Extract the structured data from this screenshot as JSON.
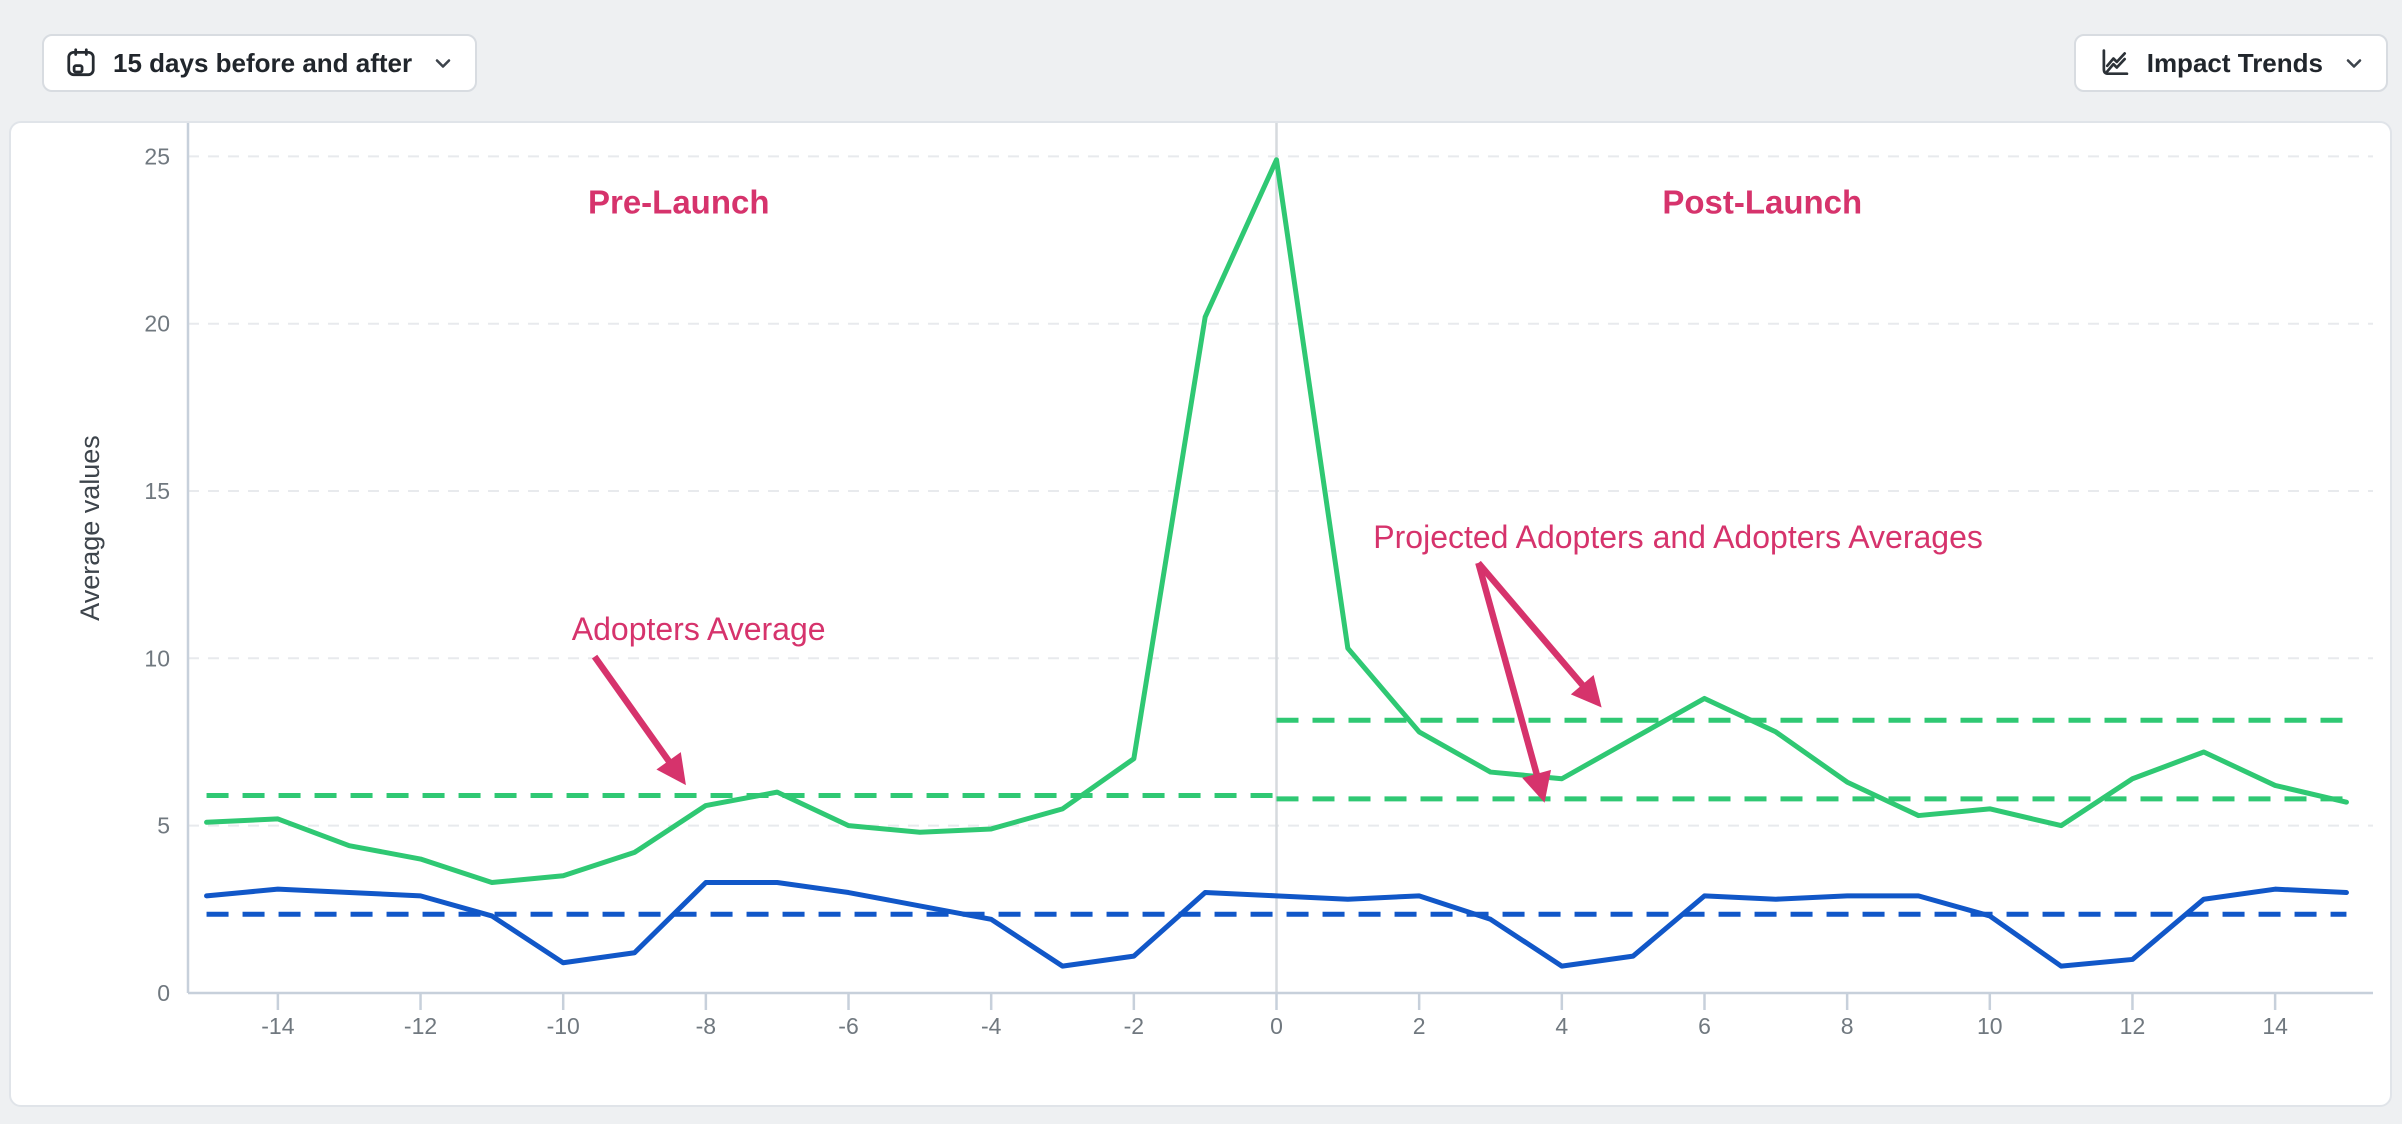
{
  "header": {
    "range_selector": {
      "label": "15 days before and after",
      "icon": "calendar"
    },
    "trends_selector": {
      "label": "Impact Trends",
      "icon": "line-chart"
    }
  },
  "chart_data": {
    "type": "line",
    "title": "",
    "xlabel": "",
    "ylabel": "Average values",
    "yticks": [
      0,
      5,
      10,
      15,
      20,
      25
    ],
    "xticks": [
      -14,
      -12,
      -10,
      -8,
      -6,
      -4,
      -2,
      0,
      2,
      4,
      6,
      8,
      10,
      12,
      14
    ],
    "ylim": [
      0,
      26
    ],
    "xlim": [
      -15.3,
      15.4
    ],
    "grid": "horizontal-dashed",
    "legend": "none",
    "x": [
      -15,
      -14,
      -13,
      -12,
      -11,
      -10,
      -9,
      -8,
      -7,
      -6,
      -5,
      -4,
      -3,
      -2,
      -1,
      0,
      1,
      2,
      3,
      4,
      5,
      6,
      7,
      8,
      9,
      10,
      11,
      12,
      13,
      14,
      15
    ],
    "series": [
      {
        "id": "adopters",
        "color": "#2fc873",
        "values": [
          5.1,
          5.2,
          4.4,
          4.0,
          3.3,
          3.5,
          4.2,
          5.6,
          6.0,
          5.0,
          4.8,
          4.9,
          5.5,
          7.0,
          20.2,
          24.9,
          10.3,
          7.8,
          6.6,
          6.4,
          7.6,
          8.8,
          7.8,
          6.3,
          5.3,
          5.5,
          5.0,
          6.4,
          7.2,
          6.2,
          5.7
        ]
      },
      {
        "id": "comparison",
        "color": "#1157c8",
        "values": [
          2.9,
          3.1,
          3.0,
          2.9,
          2.3,
          0.9,
          1.2,
          3.3,
          3.3,
          3.0,
          2.6,
          2.2,
          0.8,
          1.1,
          3.0,
          2.9,
          2.8,
          2.9,
          2.2,
          0.8,
          1.1,
          2.9,
          2.8,
          2.9,
          2.9,
          2.3,
          0.8,
          1.0,
          2.8,
          3.1,
          3.0
        ]
      }
    ],
    "average_lines": [
      {
        "id": "adopters-average-pre",
        "color": "#2fc873",
        "value": 5.9,
        "x_start": -15,
        "x_end": 0
      },
      {
        "id": "adopters-average-post",
        "color": "#2fc873",
        "value": 5.8,
        "x_start": 0,
        "x_end": 15
      },
      {
        "id": "projected-adopters-average",
        "color": "#2fc873",
        "value": 8.15,
        "x_start": 0,
        "x_end": 15
      },
      {
        "id": "comparison-average",
        "color": "#1157c8",
        "value": 2.35,
        "x_start": -15,
        "x_end": 15
      }
    ],
    "launch_line_x": 0,
    "annotation_color": "#d6336c",
    "annotations": [
      {
        "id": "pre-launch-label",
        "text": "Pre-Launch",
        "x": -8.38,
        "y": 23.3,
        "bold": true,
        "anchor": "middle"
      },
      {
        "id": "post-launch-label",
        "text": "Post-Launch",
        "x": 6.81,
        "y": 23.3,
        "bold": true,
        "anchor": "middle"
      },
      {
        "id": "adopters-average-label",
        "text": "Adopters Average",
        "x": -9.88,
        "y": 10.55,
        "bold": false,
        "anchor": "start"
      },
      {
        "id": "projected-adopters-averages-label",
        "text": "Projected Adopters and Adopters Averages",
        "x": 5.63,
        "y": 13.3,
        "bold": false,
        "anchor": "middle"
      }
    ],
    "arrows": [
      {
        "id": "adopters-average-arrow",
        "from": [
          -9.56,
          10.05
        ],
        "to": [
          -8.34,
          6.39
        ]
      },
      {
        "id": "projected-average-arrow",
        "from": [
          2.83,
          12.85
        ],
        "to": [
          4.49,
          8.7
        ]
      },
      {
        "id": "adopters-post-average-arrow",
        "from": [
          2.83,
          12.85
        ],
        "to": [
          3.73,
          5.9
        ]
      }
    ]
  }
}
